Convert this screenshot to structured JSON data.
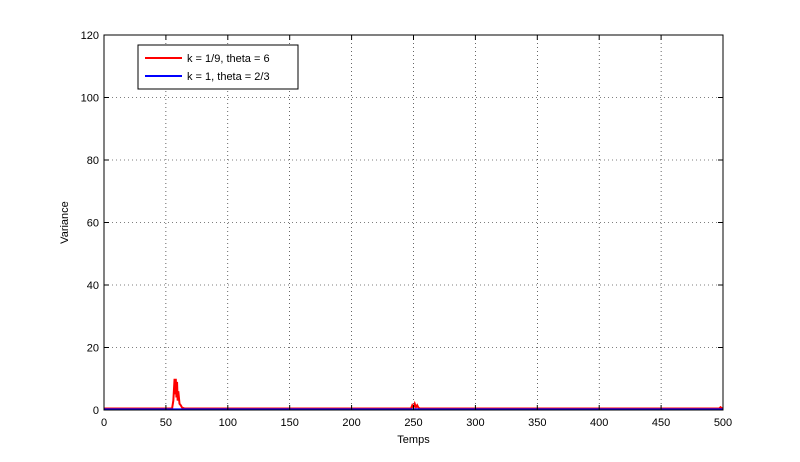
{
  "chart_data": {
    "type": "line",
    "title": "",
    "xlabel": "Temps",
    "ylabel": "Variance",
    "xlim": [
      0,
      500
    ],
    "ylim": [
      0,
      120
    ],
    "xticks": [
      0,
      50,
      100,
      150,
      200,
      250,
      300,
      350,
      400,
      450,
      500
    ],
    "yticks": [
      0,
      20,
      40,
      60,
      80,
      100,
      120
    ],
    "grid": true,
    "legend_position": "top-left",
    "series": [
      {
        "name": "k = 1/9, theta = 6",
        "color": "#ff0000",
        "x": [
          0,
          55,
          56,
          57,
          57.5,
          58,
          58.5,
          59,
          59.5,
          60,
          61,
          62,
          63,
          65,
          100,
          200,
          248,
          249,
          250,
          251,
          252,
          253,
          254,
          255,
          300,
          400,
          497,
          498,
          499,
          500
        ],
        "y": [
          0.5,
          0.5,
          3,
          10,
          5,
          10,
          4,
          9,
          3,
          6,
          2,
          1.5,
          0.8,
          0.5,
          0.5,
          0.5,
          0.5,
          1.5,
          0.8,
          2,
          0.9,
          1.5,
          0.7,
          0.5,
          0.5,
          0.5,
          0.5,
          0.9,
          0.6,
          0.5
        ]
      },
      {
        "name": "k = 1, theta = 2/3",
        "color": "#0000ff",
        "x": [
          0,
          100,
          200,
          300,
          400,
          500
        ],
        "y": [
          0.2,
          0.2,
          0.2,
          0.2,
          0.2,
          0.2
        ]
      }
    ]
  }
}
